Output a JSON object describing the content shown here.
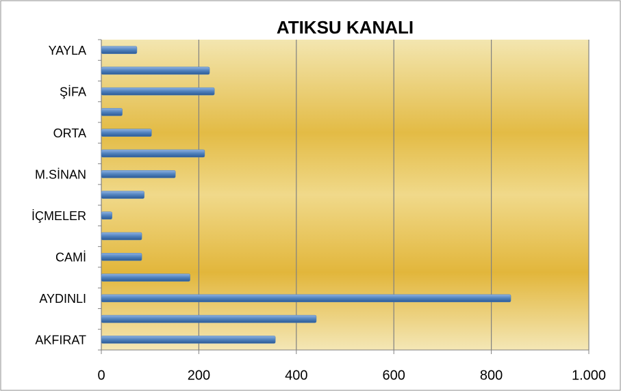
{
  "chart_data": {
    "type": "bar",
    "orientation": "horizontal",
    "title": "ATIKSU KANALI",
    "categories": [
      "AKFIRAT",
      null,
      "AYDINLI",
      null,
      "CAMİ",
      null,
      "İÇMELER",
      null,
      "M.SİNAN",
      null,
      "ORTA",
      null,
      "ŞİFA",
      null,
      "YAYLA"
    ],
    "values": [
      357,
      441,
      840,
      182,
      83,
      83,
      22,
      88,
      152,
      212,
      103,
      43,
      232,
      222,
      73
    ],
    "color": "#4f81bd",
    "xlim": [
      0,
      1000
    ],
    "xticks": [
      0,
      200,
      400,
      600,
      800,
      {
        "value": 1000,
        "label": "1.000"
      }
    ],
    "grid": true
  }
}
